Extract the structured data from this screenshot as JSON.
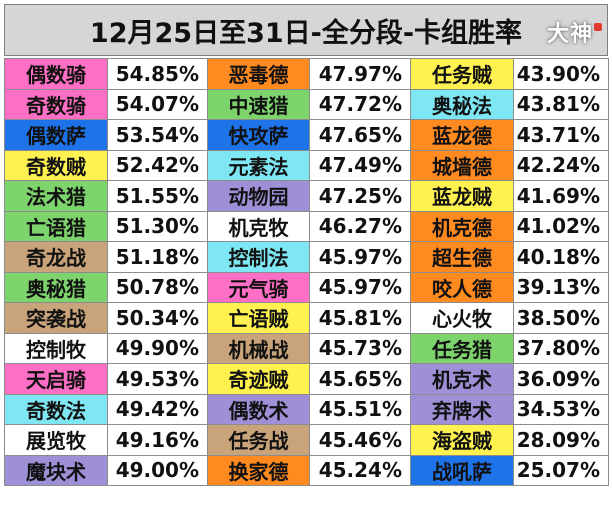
{
  "title": "12月25日至31日-全分段-卡组胜率",
  "watermark": "大神",
  "colors": {
    "pink": "#ff6fc5",
    "green": "#7dd46c",
    "blue": "#1e73e8",
    "yellow": "#fff250",
    "cyan": "#7fe6f3",
    "tan": "#c9a47b",
    "purple": "#9e8fd6",
    "orange": "#ff8a1f",
    "white": "#ffffff"
  },
  "columns": [
    [
      {
        "name": "偶数骑",
        "pct": "54.85%",
        "color": "pink"
      },
      {
        "name": "奇数骑",
        "pct": "54.07%",
        "color": "pink"
      },
      {
        "name": "偶数萨",
        "pct": "53.54%",
        "color": "blue"
      },
      {
        "name": "奇数贼",
        "pct": "52.42%",
        "color": "yellow"
      },
      {
        "name": "法术猎",
        "pct": "51.55%",
        "color": "green"
      },
      {
        "name": "亡语猎",
        "pct": "51.30%",
        "color": "green"
      },
      {
        "name": "奇龙战",
        "pct": "51.18%",
        "color": "tan"
      },
      {
        "name": "奥秘猎",
        "pct": "50.78%",
        "color": "green"
      },
      {
        "name": "突袭战",
        "pct": "50.34%",
        "color": "tan"
      },
      {
        "name": "控制牧",
        "pct": "49.90%",
        "color": "white"
      },
      {
        "name": "天启骑",
        "pct": "49.53%",
        "color": "pink"
      },
      {
        "name": "奇数法",
        "pct": "49.42%",
        "color": "cyan"
      },
      {
        "name": "展览牧",
        "pct": "49.16%",
        "color": "white"
      },
      {
        "name": "魔块术",
        "pct": "49.00%",
        "color": "purple"
      }
    ],
    [
      {
        "name": "恶毒德",
        "pct": "47.97%",
        "color": "orange"
      },
      {
        "name": "中速猎",
        "pct": "47.72%",
        "color": "green"
      },
      {
        "name": "快攻萨",
        "pct": "47.65%",
        "color": "blue"
      },
      {
        "name": "元素法",
        "pct": "47.49%",
        "color": "cyan"
      },
      {
        "name": "动物园",
        "pct": "47.25%",
        "color": "purple"
      },
      {
        "name": "机克牧",
        "pct": "46.27%",
        "color": "white"
      },
      {
        "name": "控制法",
        "pct": "45.97%",
        "color": "cyan"
      },
      {
        "name": "元气骑",
        "pct": "45.97%",
        "color": "pink"
      },
      {
        "name": "亡语贼",
        "pct": "45.81%",
        "color": "yellow"
      },
      {
        "name": "机械战",
        "pct": "45.73%",
        "color": "tan"
      },
      {
        "name": "奇迹贼",
        "pct": "45.65%",
        "color": "yellow"
      },
      {
        "name": "偶数术",
        "pct": "45.51%",
        "color": "purple"
      },
      {
        "name": "任务战",
        "pct": "45.46%",
        "color": "tan"
      },
      {
        "name": "换家德",
        "pct": "45.24%",
        "color": "orange"
      }
    ],
    [
      {
        "name": "任务贼",
        "pct": "43.90%",
        "color": "yellow"
      },
      {
        "name": "奥秘法",
        "pct": "43.81%",
        "color": "cyan"
      },
      {
        "name": "蓝龙德",
        "pct": "43.71%",
        "color": "orange"
      },
      {
        "name": "城墙德",
        "pct": "42.24%",
        "color": "orange"
      },
      {
        "name": "蓝龙贼",
        "pct": "41.69%",
        "color": "yellow"
      },
      {
        "name": "机克德",
        "pct": "41.02%",
        "color": "orange"
      },
      {
        "name": "超生德",
        "pct": "40.18%",
        "color": "orange"
      },
      {
        "name": "咬人德",
        "pct": "39.13%",
        "color": "orange"
      },
      {
        "name": "心火牧",
        "pct": "38.50%",
        "color": "white"
      },
      {
        "name": "任务猎",
        "pct": "37.80%",
        "color": "green"
      },
      {
        "name": "机克术",
        "pct": "36.09%",
        "color": "purple"
      },
      {
        "name": "弃牌术",
        "pct": "34.53%",
        "color": "purple"
      },
      {
        "name": "海盗贼",
        "pct": "28.09%",
        "color": "yellow"
      },
      {
        "name": "战吼萨",
        "pct": "25.07%",
        "color": "blue"
      }
    ]
  ]
}
